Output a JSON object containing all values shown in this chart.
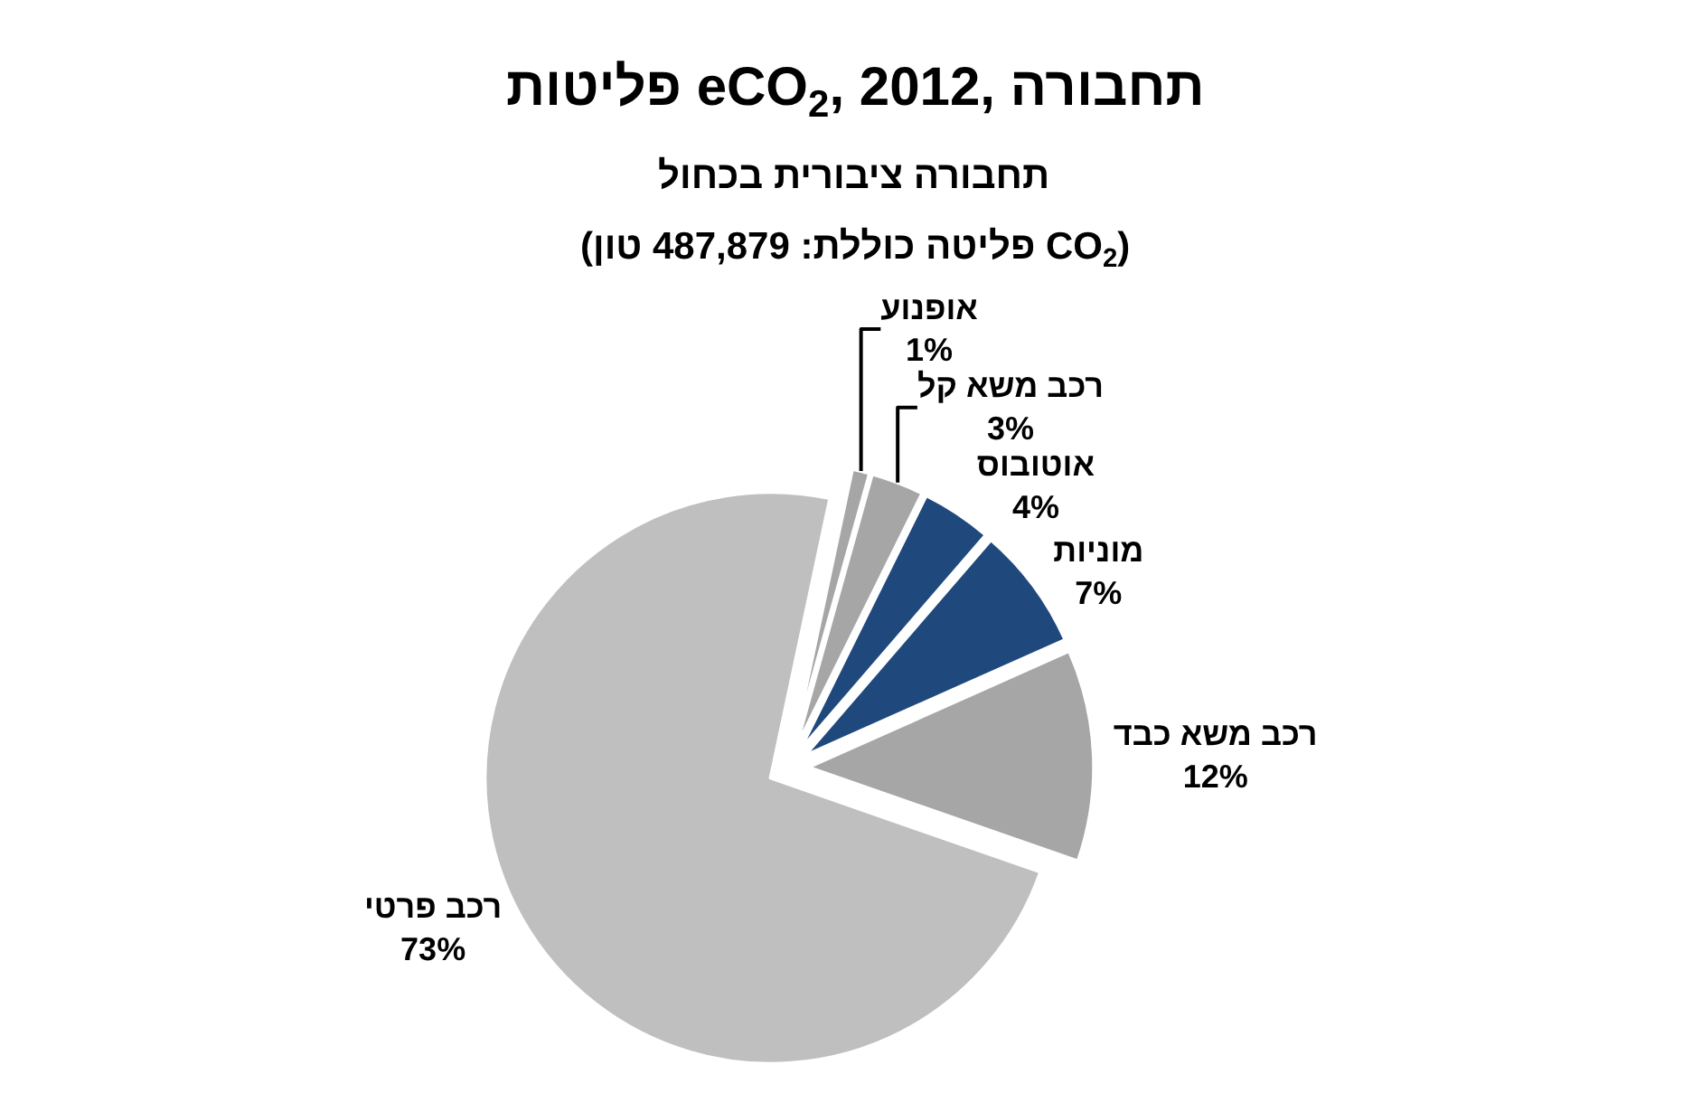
{
  "chart_data": {
    "type": "pie",
    "title": "פליטות eCO$_{2}$, 2012, תחבורה",
    "subtitle": "תחבורה ציבורית בכחול",
    "annotations": [
      "(פליטה כוללת: 487,879 טון CO$_{2}$)"
    ],
    "categories": [
      "אופנוע",
      "רכב משא קל",
      "אוטובוס",
      "מוניות",
      "רכב משא כבד",
      "רכב פרטי"
    ],
    "values": [
      1,
      3,
      4,
      7,
      12,
      73
    ],
    "value_labels": [
      "1%",
      "3%",
      "4%",
      "7%",
      "12%",
      "73%"
    ],
    "colors": [
      "#a6a6a6",
      "#a6a6a6",
      "#1f497d",
      "#1f497d",
      "#a6a6a6",
      "#bfbfbf"
    ],
    "legend": false
  }
}
